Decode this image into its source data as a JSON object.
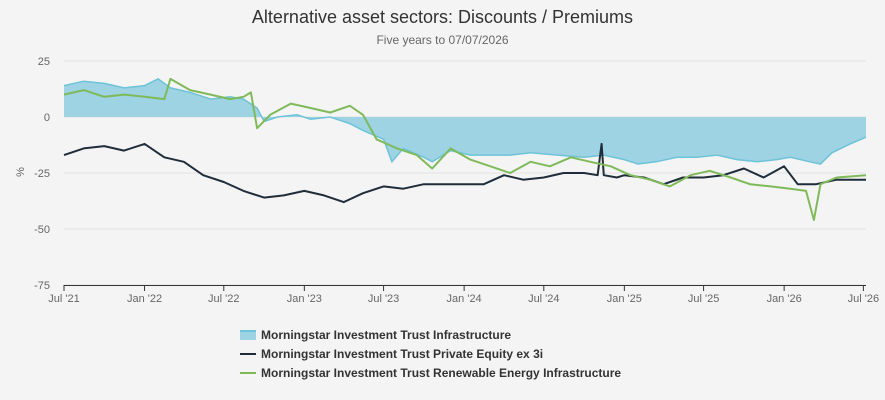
{
  "chart_data": {
    "type": "area",
    "title": "Alternative asset sectors: Discounts / Premiums",
    "subtitle": "Five years to 07/07/2026",
    "ylabel": "%",
    "xlabel": "",
    "ylim": [
      -75,
      25
    ],
    "y_ticks": [
      "25",
      "0",
      "-25",
      "-50",
      "-75"
    ],
    "x_range": [
      "2021-07-01",
      "2026-07-07"
    ],
    "x_ticks": [
      {
        "date": "2021-07-01",
        "label": "Jul '21"
      },
      {
        "date": "2022-01-01",
        "label": "Jan '22"
      },
      {
        "date": "2022-07-01",
        "label": "Jul '22"
      },
      {
        "date": "2023-01-01",
        "label": "Jan '23"
      },
      {
        "date": "2023-07-01",
        "label": "Jul '23"
      },
      {
        "date": "2024-01-01",
        "label": "Jan '24"
      },
      {
        "date": "2024-07-01",
        "label": "Jul '24"
      },
      {
        "date": "2025-01-01",
        "label": "Jan '25"
      },
      {
        "date": "2025-07-01",
        "label": "Jul '25"
      },
      {
        "date": "2026-01-01",
        "label": "Jan '26"
      },
      {
        "date": "2026-07-01",
        "label": "Jul '26"
      }
    ],
    "grid": true,
    "legend_position": "bottom",
    "series": [
      {
        "name": "Morningstar Investment Trust Infrastructure",
        "kind": "area",
        "color": "#9dd3e3",
        "line_color": "#6ec3d8",
        "points": [
          [
            "2021-07-01",
            14
          ],
          [
            "2021-08-15",
            16
          ],
          [
            "2021-10-01",
            15
          ],
          [
            "2021-11-15",
            13
          ],
          [
            "2022-01-01",
            14
          ],
          [
            "2022-02-01",
            17
          ],
          [
            "2022-03-01",
            13
          ],
          [
            "2022-04-15",
            11
          ],
          [
            "2022-06-01",
            8
          ],
          [
            "2022-07-15",
            9
          ],
          [
            "2022-08-15",
            8
          ],
          [
            "2022-09-15",
            4
          ],
          [
            "2022-10-01",
            -2
          ],
          [
            "2022-11-01",
            0
          ],
          [
            "2022-12-15",
            1
          ],
          [
            "2023-01-15",
            -1
          ],
          [
            "2023-03-01",
            0
          ],
          [
            "2023-04-15",
            -3
          ],
          [
            "2023-05-15",
            -6
          ],
          [
            "2023-07-01",
            -10
          ],
          [
            "2023-07-20",
            -20
          ],
          [
            "2023-08-15",
            -14
          ],
          [
            "2023-10-01",
            -18
          ],
          [
            "2023-10-20",
            -20
          ],
          [
            "2023-12-01",
            -15
          ],
          [
            "2024-01-15",
            -17
          ],
          [
            "2024-03-01",
            -17
          ],
          [
            "2024-04-15",
            -17
          ],
          [
            "2024-06-01",
            -16
          ],
          [
            "2024-08-01",
            -17
          ],
          [
            "2024-10-01",
            -18
          ],
          [
            "2024-11-15",
            -17
          ],
          [
            "2025-01-01",
            -19
          ],
          [
            "2025-02-01",
            -21
          ],
          [
            "2025-03-15",
            -20
          ],
          [
            "2025-05-01",
            -18
          ],
          [
            "2025-06-15",
            -18
          ],
          [
            "2025-08-01",
            -17
          ],
          [
            "2025-09-15",
            -19
          ],
          [
            "2025-11-01",
            -20
          ],
          [
            "2025-12-15",
            -19
          ],
          [
            "2026-01-15",
            -18
          ],
          [
            "2026-03-01",
            -20
          ],
          [
            "2026-03-25",
            -21
          ],
          [
            "2026-04-20",
            -16
          ],
          [
            "2026-06-01",
            -12
          ],
          [
            "2026-07-07",
            -9
          ]
        ]
      },
      {
        "name": "Morningstar Investment Trust Private Equity ex 3i",
        "kind": "line",
        "color": "#1f2d3a",
        "points": [
          [
            "2021-07-01",
            -17
          ],
          [
            "2021-08-15",
            -14
          ],
          [
            "2021-10-01",
            -13
          ],
          [
            "2021-11-15",
            -15
          ],
          [
            "2022-01-01",
            -12
          ],
          [
            "2022-02-15",
            -18
          ],
          [
            "2022-04-01",
            -20
          ],
          [
            "2022-05-15",
            -26
          ],
          [
            "2022-07-01",
            -29
          ],
          [
            "2022-08-15",
            -33
          ],
          [
            "2022-10-01",
            -36
          ],
          [
            "2022-11-15",
            -35
          ],
          [
            "2023-01-01",
            -33
          ],
          [
            "2023-02-15",
            -35
          ],
          [
            "2023-04-01",
            -38
          ],
          [
            "2023-05-15",
            -34
          ],
          [
            "2023-07-01",
            -31
          ],
          [
            "2023-08-15",
            -32
          ],
          [
            "2023-10-01",
            -30
          ],
          [
            "2023-11-15",
            -30
          ],
          [
            "2024-01-01",
            -30
          ],
          [
            "2024-02-15",
            -30
          ],
          [
            "2024-04-01",
            -26
          ],
          [
            "2024-05-15",
            -28
          ],
          [
            "2024-07-01",
            -27
          ],
          [
            "2024-08-15",
            -25
          ],
          [
            "2024-10-01",
            -25
          ],
          [
            "2024-11-01",
            -26
          ],
          [
            "2024-11-10",
            -12
          ],
          [
            "2024-11-15",
            -26
          ],
          [
            "2024-12-15",
            -27
          ],
          [
            "2025-01-01",
            -26
          ],
          [
            "2025-02-15",
            -27
          ],
          [
            "2025-04-01",
            -30
          ],
          [
            "2025-05-15",
            -27
          ],
          [
            "2025-07-01",
            -27
          ],
          [
            "2025-08-15",
            -26
          ],
          [
            "2025-10-01",
            -23
          ],
          [
            "2025-11-15",
            -27
          ],
          [
            "2026-01-01",
            -22
          ],
          [
            "2026-02-01",
            -30
          ],
          [
            "2026-03-15",
            -30
          ],
          [
            "2026-05-01",
            -28
          ],
          [
            "2026-07-07",
            -28
          ]
        ]
      },
      {
        "name": "Morningstar Investment Trust Renewable Energy Infrastructure",
        "kind": "line",
        "color": "#7fba5a",
        "points": [
          [
            "2021-07-01",
            10
          ],
          [
            "2021-08-15",
            12
          ],
          [
            "2021-10-01",
            9
          ],
          [
            "2021-11-15",
            10
          ],
          [
            "2022-01-01",
            9
          ],
          [
            "2022-02-15",
            8
          ],
          [
            "2022-03-01",
            17
          ],
          [
            "2022-04-15",
            12
          ],
          [
            "2022-06-01",
            10
          ],
          [
            "2022-07-15",
            8
          ],
          [
            "2022-08-15",
            9
          ],
          [
            "2022-09-01",
            11
          ],
          [
            "2022-09-15",
            -5
          ],
          [
            "2022-10-15",
            1
          ],
          [
            "2022-12-01",
            6
          ],
          [
            "2023-01-15",
            4
          ],
          [
            "2023-03-01",
            2
          ],
          [
            "2023-04-15",
            5
          ],
          [
            "2023-05-15",
            1
          ],
          [
            "2023-06-15",
            -10
          ],
          [
            "2023-08-01",
            -14
          ],
          [
            "2023-09-15",
            -17
          ],
          [
            "2023-10-20",
            -23
          ],
          [
            "2023-12-01",
            -14
          ],
          [
            "2024-01-15",
            -19
          ],
          [
            "2024-03-01",
            -22
          ],
          [
            "2024-04-15",
            -25
          ],
          [
            "2024-06-01",
            -20
          ],
          [
            "2024-07-15",
            -22
          ],
          [
            "2024-09-01",
            -18
          ],
          [
            "2024-10-15",
            -20
          ],
          [
            "2024-12-01",
            -22
          ],
          [
            "2025-01-15",
            -26
          ],
          [
            "2025-03-01",
            -28
          ],
          [
            "2025-04-15",
            -31
          ],
          [
            "2025-06-01",
            -26
          ],
          [
            "2025-07-15",
            -24
          ],
          [
            "2025-09-01",
            -27
          ],
          [
            "2025-10-15",
            -30
          ],
          [
            "2025-12-01",
            -31
          ],
          [
            "2026-01-15",
            -32
          ],
          [
            "2026-02-20",
            -33
          ],
          [
            "2026-03-10",
            -46
          ],
          [
            "2026-03-25",
            -30
          ],
          [
            "2026-05-01",
            -27
          ],
          [
            "2026-07-07",
            -26
          ]
        ]
      }
    ]
  }
}
